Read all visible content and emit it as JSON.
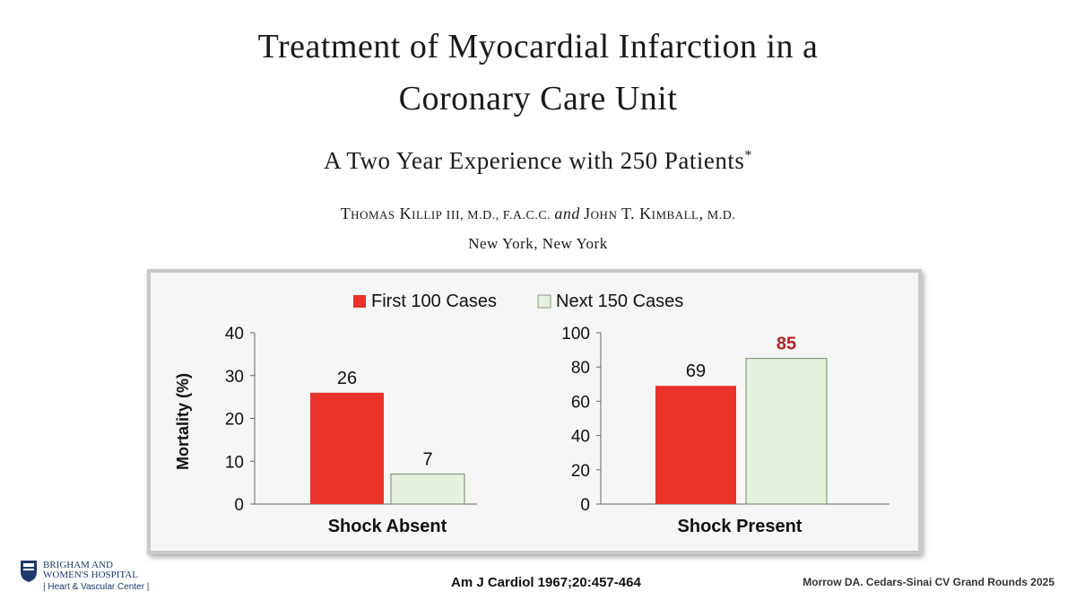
{
  "header": {
    "title_line1": "Treatment of Myocardial Infarction in a",
    "title_line2": "Coronary Care Unit",
    "subtitle": "A Two Year Experience with 250 Patients",
    "subtitle_mark": "*",
    "authors": {
      "a1": "Thomas Killip",
      "a1_suffix": "III, M.D., F.A.C.C.",
      "and": "and",
      "a2": "John T. Kimball,",
      "a2_suffix": "M.D."
    },
    "location": "New York, New York"
  },
  "chart_data": {
    "type": "bar",
    "legend": [
      {
        "name": "First 100 Cases",
        "color": "#e8322a"
      },
      {
        "name": "Next 150 Cases",
        "color": "#e6f0df"
      }
    ],
    "ylabel": "Mortality (%)",
    "panels": [
      {
        "xlabel": "Shock Absent",
        "ylim": [
          0,
          40
        ],
        "ticks": [
          0,
          10,
          20,
          30,
          40
        ],
        "values": [
          26,
          7
        ],
        "labels": [
          "26",
          "7"
        ]
      },
      {
        "xlabel": "Shock Present",
        "ylim": [
          0,
          100
        ],
        "ticks": [
          0,
          20,
          40,
          60,
          80,
          100
        ],
        "values": [
          69,
          85
        ],
        "labels": [
          "69",
          "85"
        ]
      }
    ],
    "highlight_color": "#b22222"
  },
  "footer": {
    "logo_line1": "BRIGHAM AND",
    "logo_line2": "WOMEN'S HOSPITAL",
    "logo_line3": "Heart & Vascular Center",
    "citation": "Am J Cardiol 1967;20:457-464",
    "credit": "Morrow DA. Cedars-Sinai CV Grand Rounds 2025"
  }
}
